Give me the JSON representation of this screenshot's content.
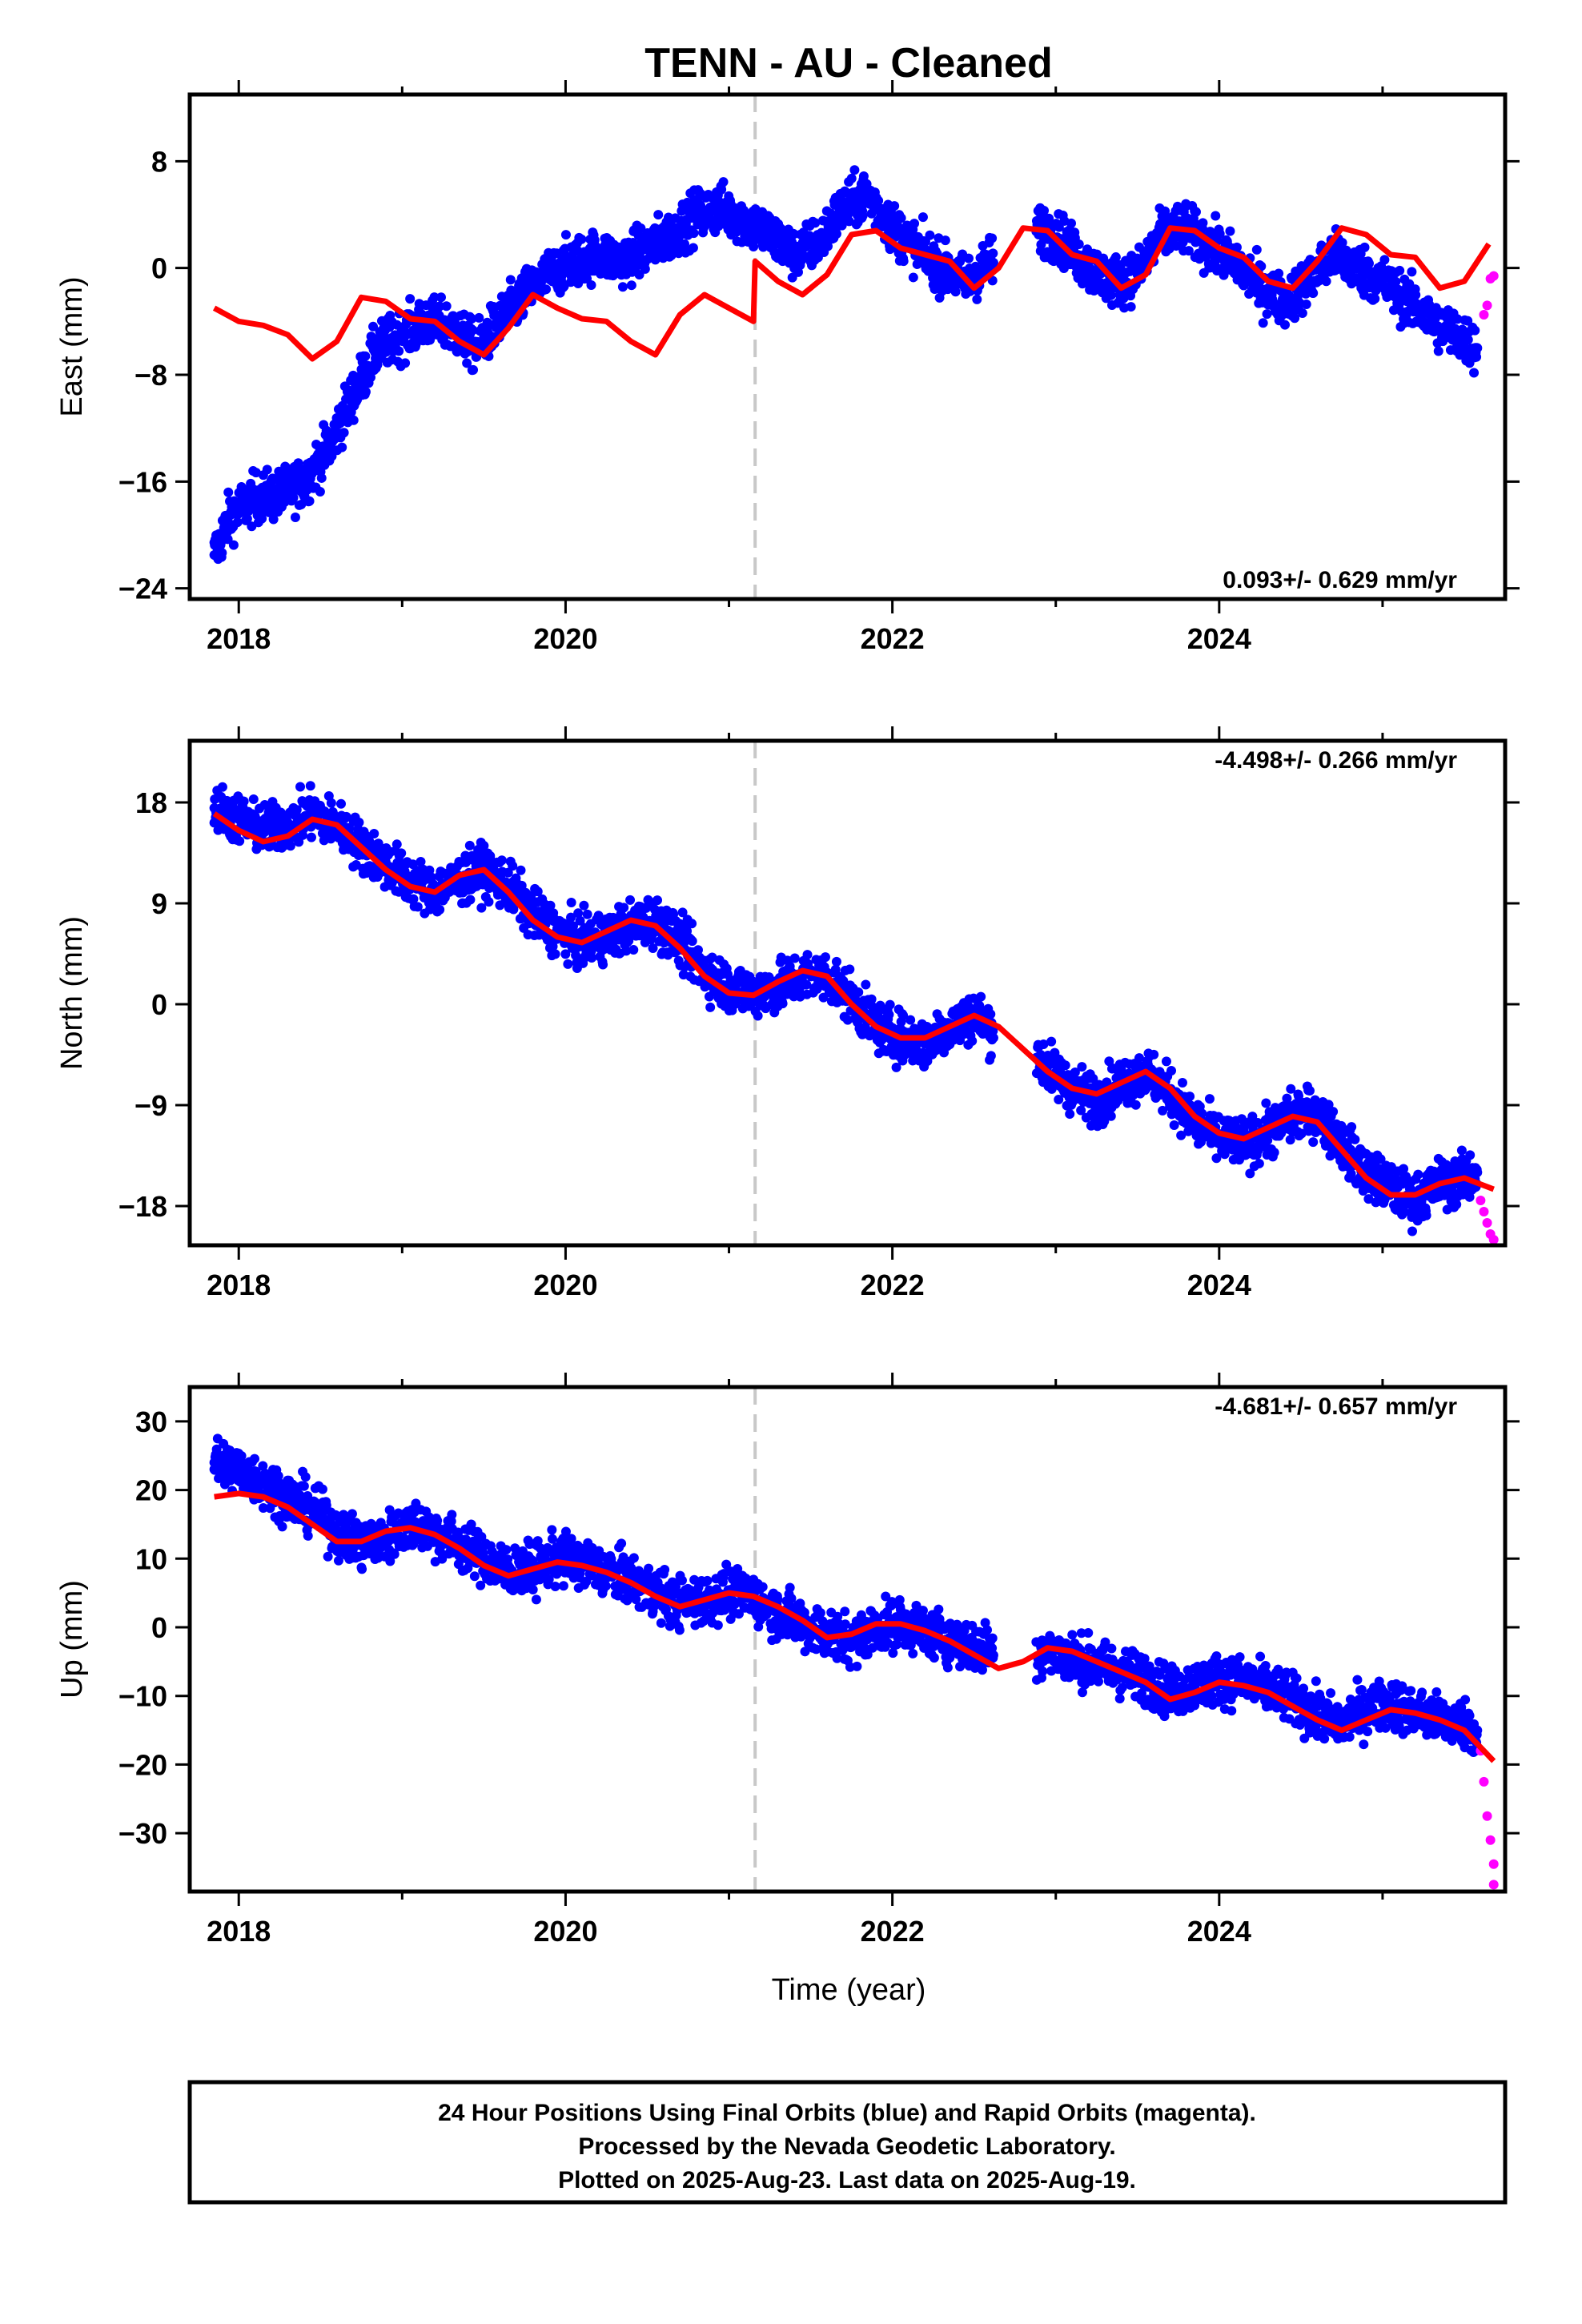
{
  "title": "TENN  - AU - Cleaned",
  "xlabel": "Time (year)",
  "footer": {
    "line1": "24 Hour Positions Using Final Orbits (blue) and Rapid Orbits (magenta).",
    "line2": "Processed by the Nevada Geodetic Laboratory.",
    "line3": "Plotted on 2025-Aug-23. Last data on 2025-Aug-19."
  },
  "colors": {
    "final_orbits": "#0000ff",
    "rapid_orbits": "#ff00ff",
    "model": "#ff0000",
    "equipment_change": "#c8c8c8"
  },
  "chart_data": [
    {
      "type": "scatter",
      "ylabel": "East (mm)",
      "rate_label": "0.093+/- 0.629 mm/yr",
      "xlim": [
        2017.7,
        2025.75
      ],
      "ylim": [
        -24.8,
        13
      ],
      "xticks": [
        2018,
        2020,
        2022,
        2024
      ],
      "yticks": [
        -24,
        -16,
        -8,
        0,
        8
      ],
      "equipment_change": 2021.16,
      "series": [
        {
          "role": "final",
          "x": [
            2017.85,
            2017.95,
            2018.1,
            2018.25,
            2018.4,
            2018.55,
            2018.7,
            2018.85,
            2019.0,
            2019.15,
            2019.3,
            2019.45,
            2019.6,
            2019.75,
            2019.9,
            2020.05,
            2020.2,
            2020.35,
            2020.5,
            2020.65,
            2020.8,
            2020.95,
            2021.1,
            2021.25,
            2021.4,
            2021.55,
            2021.7,
            2021.85,
            2022.0,
            2022.15,
            2022.3,
            2022.45,
            2022.6,
            2022.9,
            2023.05,
            2023.2,
            2023.35,
            2023.5,
            2023.65,
            2023.8,
            2023.95,
            2024.1,
            2024.25,
            2024.4,
            2024.55,
            2024.7,
            2024.85,
            2025.0,
            2025.15,
            2025.3,
            2025.45,
            2025.58
          ],
          "y": [
            -21.5,
            -18.5,
            -17.2,
            -17.0,
            -16.0,
            -13.5,
            -9.5,
            -6.0,
            -5.0,
            -4.0,
            -4.5,
            -6.0,
            -4.0,
            -2.0,
            -0.5,
            0.5,
            1.0,
            0.5,
            1.5,
            2.5,
            4.0,
            4.5,
            3.5,
            2.5,
            1.0,
            2.0,
            4.5,
            5.5,
            3.0,
            1.5,
            0.0,
            -1.0,
            0.5,
            3.0,
            2.0,
            0.0,
            -1.0,
            -0.5,
            2.5,
            3.0,
            1.5,
            0.5,
            -1.5,
            -2.5,
            -1.0,
            1.0,
            0.0,
            -1.0,
            -2.5,
            -4.0,
            -5.0,
            -6.0
          ]
        },
        {
          "role": "rapid",
          "x": [
            2025.62,
            2025.64,
            2025.66,
            2025.68
          ],
          "y": [
            -3.5,
            -2.8,
            -0.8,
            -0.6
          ]
        },
        {
          "role": "model",
          "x": [
            2017.85,
            2018.0,
            2018.15,
            2018.3,
            2018.45,
            2018.6,
            2018.75,
            2018.9,
            2019.05,
            2019.2,
            2019.35,
            2019.5,
            2019.65,
            2019.8,
            2019.95,
            2020.1,
            2020.25,
            2020.4,
            2020.55,
            2020.7,
            2020.85,
            2021.0,
            2021.15,
            2021.16,
            2021.3,
            2021.45,
            2021.6,
            2021.75,
            2021.9,
            2022.05,
            2022.2,
            2022.35,
            2022.5,
            2022.65,
            2022.8,
            2022.95,
            2023.1,
            2023.25,
            2023.4,
            2023.55,
            2023.7,
            2023.85,
            2024.0,
            2024.15,
            2024.3,
            2024.45,
            2024.6,
            2024.75,
            2024.9,
            2025.05,
            2025.2,
            2025.35,
            2025.5,
            2025.65
          ],
          "y": [
            -3.0,
            -4.0,
            -4.3,
            -5.0,
            -6.8,
            -5.5,
            -2.2,
            -2.5,
            -3.8,
            -4.0,
            -5.5,
            -6.5,
            -4.5,
            -2.0,
            -3.0,
            -3.8,
            -4.0,
            -5.5,
            -6.5,
            -3.5,
            -2.0,
            -3.0,
            -4.0,
            0.5,
            -1.0,
            -2.0,
            -0.5,
            2.5,
            2.8,
            1.5,
            1.0,
            0.5,
            -1.5,
            0.0,
            3.0,
            2.8,
            1.0,
            0.5,
            -1.5,
            -0.5,
            3.0,
            2.8,
            1.5,
            0.8,
            -1.0,
            -1.5,
            0.5,
            3.0,
            2.5,
            1.0,
            0.8,
            -1.5,
            -1.0,
            1.8
          ]
        }
      ]
    },
    {
      "type": "scatter",
      "ylabel": "North (mm)",
      "rate_label": "-4.498+/- 0.266 mm/yr",
      "xlim": [
        2017.7,
        2025.75
      ],
      "ylim": [
        -21.5,
        23.5
      ],
      "xticks": [
        2018,
        2020,
        2022,
        2024
      ],
      "yticks": [
        -18,
        -9,
        0,
        9,
        18
      ],
      "equipment_change": 2021.16,
      "series": [
        {
          "role": "final",
          "x": [
            2017.85,
            2018.0,
            2018.15,
            2018.3,
            2018.45,
            2018.6,
            2018.75,
            2018.9,
            2019.05,
            2019.2,
            2019.35,
            2019.5,
            2019.65,
            2019.8,
            2019.95,
            2020.1,
            2020.25,
            2020.4,
            2020.55,
            2020.7,
            2020.85,
            2021.0,
            2021.15,
            2021.3,
            2021.45,
            2021.6,
            2021.75,
            2021.9,
            2022.05,
            2022.2,
            2022.35,
            2022.5,
            2022.95,
            2023.1,
            2023.25,
            2023.4,
            2023.55,
            2023.7,
            2023.85,
            2024.0,
            2024.15,
            2024.3,
            2024.45,
            2024.6,
            2024.75,
            2024.9,
            2025.05,
            2025.2,
            2025.35,
            2025.5,
            2025.58
          ],
          "y": [
            17.5,
            16.5,
            15.5,
            16.0,
            17.0,
            16.0,
            14.0,
            12.5,
            11.0,
            10.0,
            11.0,
            12.0,
            10.5,
            8.0,
            6.5,
            5.5,
            6.0,
            7.0,
            7.5,
            5.5,
            3.0,
            1.5,
            1.0,
            1.5,
            2.5,
            2.5,
            0.5,
            -2.0,
            -3.0,
            -3.5,
            -2.0,
            -1.0,
            -5.5,
            -7.5,
            -8.5,
            -7.0,
            -6.0,
            -8.0,
            -10.5,
            -12.0,
            -12.5,
            -11.5,
            -10.0,
            -9.5,
            -12.5,
            -15.0,
            -16.5,
            -17.5,
            -16.0,
            -15.5,
            -15.0
          ]
        },
        {
          "role": "rapid",
          "x": [
            2025.6,
            2025.62,
            2025.64,
            2025.66,
            2025.68
          ],
          "y": [
            -17.5,
            -18.5,
            -19.5,
            -20.5,
            -21.0
          ]
        },
        {
          "role": "model",
          "x": [
            2017.85,
            2018.0,
            2018.15,
            2018.3,
            2018.45,
            2018.6,
            2018.75,
            2018.9,
            2019.05,
            2019.2,
            2019.35,
            2019.5,
            2019.65,
            2019.8,
            2019.95,
            2020.1,
            2020.25,
            2020.4,
            2020.55,
            2020.7,
            2020.85,
            2021.0,
            2021.15,
            2021.3,
            2021.45,
            2021.6,
            2021.75,
            2021.9,
            2022.05,
            2022.2,
            2022.35,
            2022.5,
            2022.65,
            2022.8,
            2022.95,
            2023.1,
            2023.25,
            2023.4,
            2023.55,
            2023.7,
            2023.85,
            2024.0,
            2024.15,
            2024.3,
            2024.45,
            2024.6,
            2024.75,
            2024.9,
            2025.05,
            2025.2,
            2025.35,
            2025.5,
            2025.68
          ],
          "y": [
            17.0,
            15.5,
            14.5,
            15.0,
            16.5,
            16.0,
            14.0,
            12.0,
            10.5,
            10.0,
            11.5,
            12.0,
            10.0,
            7.5,
            6.0,
            5.5,
            6.5,
            7.5,
            7.0,
            5.0,
            2.5,
            1.0,
            0.8,
            2.0,
            3.0,
            2.5,
            0.0,
            -2.0,
            -3.0,
            -3.0,
            -2.0,
            -1.0,
            -2.0,
            -4.0,
            -6.0,
            -7.5,
            -8.0,
            -7.0,
            -6.0,
            -7.5,
            -10.0,
            -11.5,
            -12.0,
            -11.0,
            -10.0,
            -10.5,
            -13.0,
            -15.5,
            -17.0,
            -17.0,
            -16.0,
            -15.5,
            -16.5
          ]
        }
      ]
    },
    {
      "type": "scatter",
      "ylabel": "Up (mm)",
      "rate_label": "-4.681+/- 0.657 mm/yr",
      "xlim": [
        2017.7,
        2025.75
      ],
      "ylim": [
        -38.5,
        35
      ],
      "xticks": [
        2018,
        2020,
        2022,
        2024
      ],
      "yticks": [
        -30,
        -20,
        -10,
        0,
        10,
        20,
        30
      ],
      "equipment_change": 2021.16,
      "series": [
        {
          "role": "final",
          "x": [
            2017.85,
            2018.0,
            2018.15,
            2018.3,
            2018.45,
            2018.6,
            2018.75,
            2018.9,
            2019.05,
            2019.2,
            2019.35,
            2019.5,
            2019.65,
            2019.8,
            2019.95,
            2020.1,
            2020.25,
            2020.4,
            2020.55,
            2020.7,
            2020.85,
            2021.0,
            2021.15,
            2021.3,
            2021.45,
            2021.6,
            2021.75,
            2021.9,
            2022.05,
            2022.2,
            2022.35,
            2022.5,
            2022.95,
            2023.1,
            2023.25,
            2023.4,
            2023.55,
            2023.7,
            2023.85,
            2024.0,
            2024.15,
            2024.3,
            2024.45,
            2024.6,
            2024.75,
            2024.9,
            2025.05,
            2025.2,
            2025.35,
            2025.5,
            2025.58
          ],
          "y": [
            24.0,
            23.0,
            21.0,
            19.0,
            17.0,
            14.0,
            12.0,
            13.0,
            15.0,
            14.0,
            12.0,
            10.0,
            8.0,
            8.5,
            10.0,
            9.5,
            8.0,
            7.0,
            5.0,
            3.5,
            4.0,
            5.0,
            4.5,
            2.0,
            0.5,
            -1.0,
            -2.0,
            0.0,
            0.5,
            -0.5,
            -1.5,
            -3.0,
            -3.5,
            -4.5,
            -5.5,
            -6.5,
            -7.5,
            -9.5,
            -8.5,
            -7.5,
            -8.0,
            -9.0,
            -10.5,
            -13.0,
            -14.0,
            -12.0,
            -11.0,
            -12.5,
            -13.5,
            -14.0,
            -15.0
          ]
        },
        {
          "role": "rapid",
          "x": [
            2025.6,
            2025.62,
            2025.64,
            2025.66,
            2025.68,
            2025.68
          ],
          "y": [
            -18.0,
            -22.5,
            -27.5,
            -31.0,
            -34.5,
            -37.5
          ]
        },
        {
          "role": "model",
          "x": [
            2017.85,
            2018.0,
            2018.15,
            2018.3,
            2018.45,
            2018.6,
            2018.75,
            2018.9,
            2019.05,
            2019.2,
            2019.35,
            2019.5,
            2019.65,
            2019.8,
            2019.95,
            2020.1,
            2020.25,
            2020.4,
            2020.55,
            2020.7,
            2020.85,
            2021.0,
            2021.15,
            2021.3,
            2021.45,
            2021.6,
            2021.75,
            2021.9,
            2022.05,
            2022.2,
            2022.35,
            2022.5,
            2022.65,
            2022.8,
            2022.95,
            2023.1,
            2023.25,
            2023.4,
            2023.55,
            2023.7,
            2023.85,
            2024.0,
            2024.15,
            2024.3,
            2024.45,
            2024.6,
            2024.75,
            2024.9,
            2025.05,
            2025.2,
            2025.35,
            2025.5,
            2025.68
          ],
          "y": [
            19.0,
            19.5,
            19.0,
            17.5,
            15.0,
            12.5,
            12.5,
            14.0,
            14.5,
            13.5,
            11.5,
            9.0,
            7.5,
            8.5,
            9.5,
            9.0,
            8.0,
            6.5,
            4.5,
            3.0,
            4.0,
            5.0,
            4.5,
            3.0,
            1.0,
            -1.5,
            -1.0,
            0.5,
            0.5,
            -0.5,
            -2.0,
            -4.0,
            -6.0,
            -5.0,
            -3.0,
            -3.5,
            -5.0,
            -6.5,
            -8.0,
            -10.5,
            -9.5,
            -8.0,
            -8.5,
            -9.5,
            -11.5,
            -13.5,
            -15.0,
            -13.5,
            -12.0,
            -12.5,
            -13.5,
            -15.0,
            -19.5
          ]
        }
      ]
    }
  ]
}
